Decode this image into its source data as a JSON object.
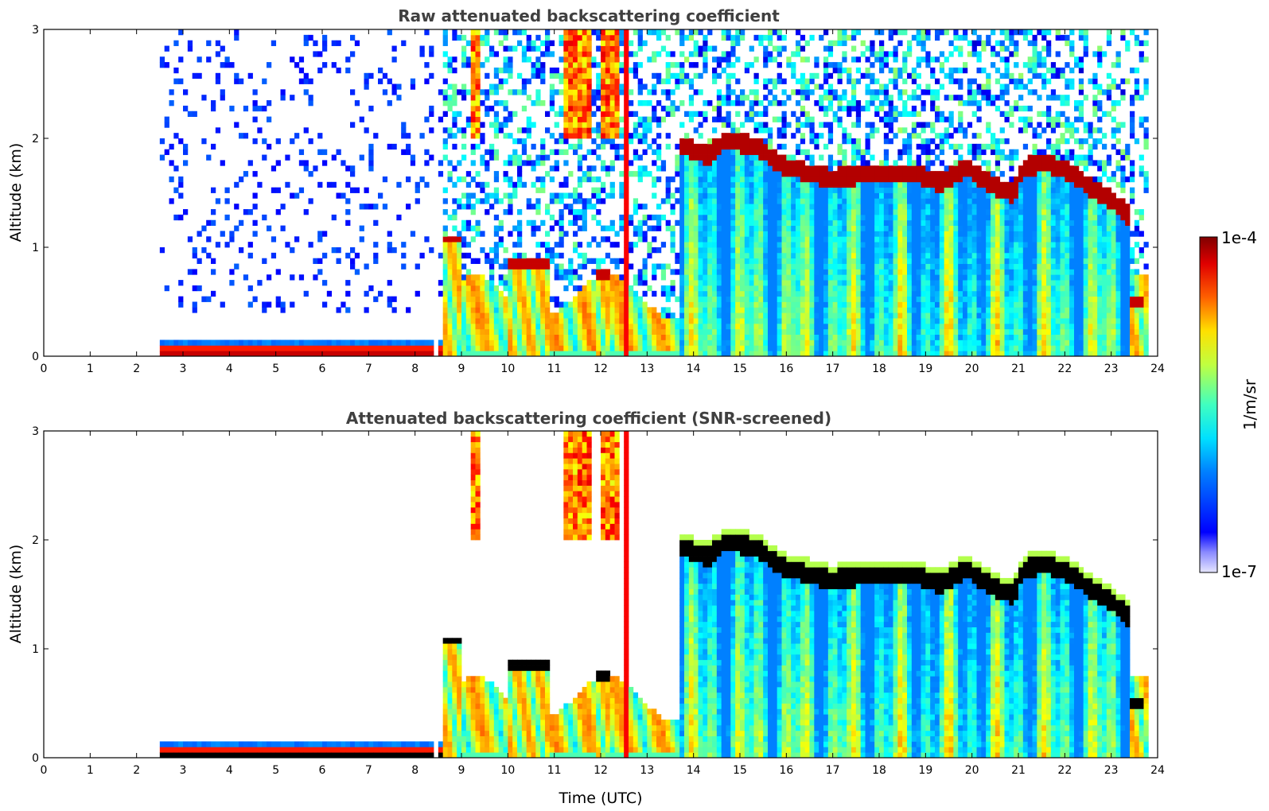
{
  "chart_data": [
    {
      "type": "heatmap",
      "title": "Raw attenuated backscattering coefficient",
      "xlabel": "",
      "ylabel": "Altitude (km)",
      "xlim": [
        0,
        24
      ],
      "ylim": [
        0,
        3
      ],
      "xticks": [
        "0",
        "1",
        "2",
        "3",
        "4",
        "5",
        "6",
        "7",
        "8",
        "9",
        "10",
        "11",
        "12",
        "13",
        "14",
        "15",
        "16",
        "17",
        "18",
        "19",
        "20",
        "21",
        "22",
        "23",
        "24"
      ],
      "yticks": [
        "0",
        "1",
        "2",
        "3"
      ],
      "screened": false
    },
    {
      "type": "heatmap",
      "title": "Attenuated backscattering coefficient (SNR-screened)",
      "xlabel": "Time (UTC)",
      "ylabel": "Altitude (km)",
      "xlim": [
        0,
        24
      ],
      "ylim": [
        0,
        3
      ],
      "xticks": [
        "0",
        "1",
        "2",
        "3",
        "4",
        "5",
        "6",
        "7",
        "8",
        "9",
        "10",
        "11",
        "12",
        "13",
        "14",
        "15",
        "16",
        "17",
        "18",
        "19",
        "20",
        "21",
        "22",
        "23",
        "24"
      ],
      "yticks": [
        "0",
        "1",
        "2",
        "3"
      ],
      "screened": true
    }
  ],
  "colorbar": {
    "label": "1/m/sr",
    "max_label": "1e-4",
    "min_label": "1e-7",
    "colormap": "jet",
    "scale": "log"
  },
  "features": {
    "data_start_hour": 2.55,
    "data_end_hour": 23.75,
    "surface_layer_top_km": 0.17,
    "cloud_base_profile": [
      [
        13.7,
        1.85
      ],
      [
        14.3,
        1.75
      ],
      [
        14.7,
        1.9
      ],
      [
        15.3,
        1.85
      ],
      [
        16.0,
        1.65
      ],
      [
        17.0,
        1.55
      ],
      [
        18.0,
        1.6
      ],
      [
        18.8,
        1.6
      ],
      [
        19.3,
        1.5
      ],
      [
        19.9,
        1.65
      ],
      [
        20.4,
        1.5
      ],
      [
        20.9,
        1.4
      ],
      [
        21.1,
        1.65
      ],
      [
        21.6,
        1.7
      ],
      [
        22.1,
        1.6
      ],
      [
        22.6,
        1.45
      ],
      [
        23.0,
        1.35
      ],
      [
        23.4,
        1.2
      ]
    ],
    "low_cloud_segments": [
      [
        10.0,
        10.9,
        0.78,
        0.92
      ],
      [
        11.9,
        12.2,
        0.72,
        0.78
      ],
      [
        8.65,
        9.0,
        1.05,
        1.12
      ],
      [
        23.4,
        23.7,
        0.45,
        0.55
      ]
    ]
  }
}
